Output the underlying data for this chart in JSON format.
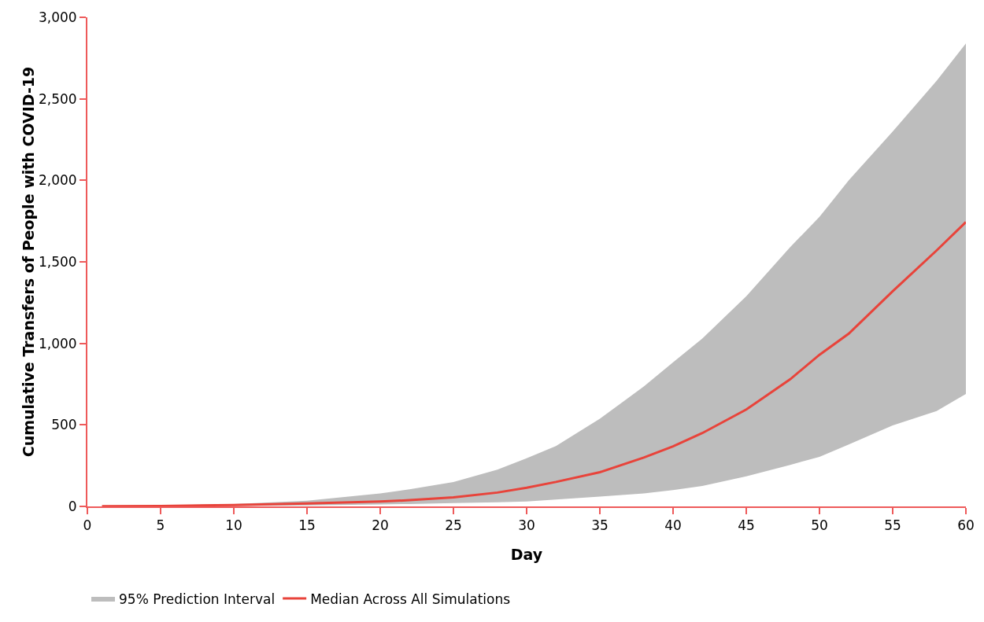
{
  "chart_data": {
    "type": "line",
    "xlabel": "Day",
    "ylabel": "Cumulative Transfers of People with COVID-19",
    "annotations": [
      "95% Prediction Interval"
    ],
    "x": [
      1,
      5,
      10,
      15,
      20,
      22,
      25,
      28,
      30,
      32,
      35,
      38,
      40,
      42,
      45,
      48,
      50,
      52,
      55,
      58,
      60
    ],
    "series": [
      {
        "name": "Median Across All Simulations",
        "color": "#e8433a",
        "values": [
          1,
          3,
          9,
          18,
          30,
          38,
          55,
          85,
          115,
          150,
          210,
          300,
          368,
          450,
          594,
          780,
          930,
          1060,
          1320,
          1570,
          1744
        ],
        "lower": [
          0,
          1,
          3,
          6,
          12,
          15,
          20,
          25,
          30,
          42,
          60,
          80,
          100,
          125,
          184,
          255,
          304,
          380,
          497,
          585,
          690
        ],
        "upper": [
          2,
          6,
          15,
          35,
          80,
          105,
          150,
          225,
          295,
          370,
          538,
          735,
          884,
          1030,
          1289,
          1590,
          1776,
          2000,
          2300,
          2610,
          2840
        ]
      }
    ],
    "xlim": [
      0,
      60
    ],
    "xticks": [
      0,
      5,
      10,
      15,
      20,
      25,
      30,
      35,
      40,
      45,
      50,
      55,
      60
    ],
    "ylim": [
      0,
      3000
    ],
    "yticks": [
      {
        "value": 0,
        "label": "0"
      },
      {
        "value": 500,
        "label": "500"
      },
      {
        "value": 1000,
        "label": "1,000"
      },
      {
        "value": 1500,
        "label": "1,500"
      },
      {
        "value": 2000,
        "label": "2,000"
      },
      {
        "value": 2500,
        "label": "2,500"
      },
      {
        "value": 3000,
        "label": "3,000"
      }
    ],
    "grid": false,
    "legend": "bottom left",
    "line_style": "solid",
    "marker": "none"
  }
}
